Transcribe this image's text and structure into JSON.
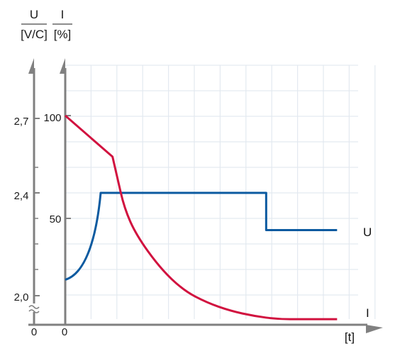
{
  "chart_data": {
    "type": "line",
    "axes": {
      "u_axis": {
        "name": "U",
        "unit": "[V/C]",
        "ticks": [
          "2,0",
          "2,4",
          "2,7"
        ],
        "zero_label": "0",
        "break": true
      },
      "i_axis": {
        "name": "I",
        "unit": "[%]",
        "ticks": [
          "50",
          "100"
        ],
        "zero_label": "0"
      },
      "x_axis": {
        "label": "[t]",
        "vertical_gridlines": 12
      }
    },
    "u_tick_values": [
      2.0,
      2.4,
      2.7
    ],
    "i_tick_values": [
      50,
      100
    ],
    "x_range": [
      0,
      12
    ],
    "series": [
      {
        "name": "U",
        "axis": "u",
        "color": "#0b5aa0",
        "points": [
          [
            0,
            2.05
          ],
          [
            0.5,
            2.1
          ],
          [
            1.0,
            2.2
          ],
          [
            1.5,
            2.4
          ],
          [
            8.5,
            2.4
          ],
          [
            8.5,
            2.25
          ],
          [
            11.5,
            2.25
          ]
        ]
      },
      {
        "name": "I",
        "axis": "i",
        "color": "#d1123f",
        "points": [
          [
            0,
            100
          ],
          [
            2,
            80
          ],
          [
            2.2,
            70
          ],
          [
            2.5,
            55
          ],
          [
            3,
            42
          ],
          [
            4,
            26
          ],
          [
            5,
            15
          ],
          [
            6,
            9
          ],
          [
            7,
            5
          ],
          [
            8,
            2.5
          ],
          [
            9,
            1
          ],
          [
            10,
            1
          ],
          [
            11.5,
            1
          ]
        ]
      }
    ],
    "colors": {
      "background": "#ffffff",
      "grid": "#e3e9f0",
      "axis": "#808080"
    }
  }
}
